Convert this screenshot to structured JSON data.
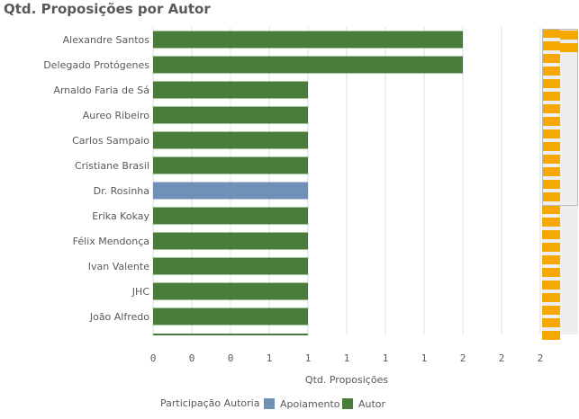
{
  "chart_data": {
    "type": "bar",
    "orientation": "horizontal",
    "stacked": true,
    "title": "Qtd. Proposições por Autor",
    "xlabel": "Qtd. Proposições",
    "ylabel": "",
    "categories": [
      "Alexandre Santos",
      "Delegado Protógenes",
      "Arnaldo Faria de Sá",
      "Aureo Ribeiro",
      "Carlos Sampaio",
      "Cristiane Brasil",
      "Dr. Rosinha",
      "Erika Kokay",
      "Félix Mendonça",
      "Ivan Valente",
      "JHC",
      "João Alfredo"
    ],
    "series": [
      {
        "name": "Apoiamento",
        "color": "#7090b8",
        "values": [
          0,
          0,
          0,
          0,
          0,
          0,
          1,
          0,
          0,
          0,
          0,
          0
        ]
      },
      {
        "name": "Autor",
        "color": "#4a7c3c",
        "values": [
          2,
          2,
          1,
          1,
          1,
          1,
          0,
          1,
          1,
          1,
          1,
          1
        ]
      }
    ],
    "x_tick_labels": [
      "0",
      "0",
      "0",
      "1",
      "1",
      "1",
      "1",
      "1",
      "2",
      "2",
      "2"
    ],
    "xlim": [
      0,
      2.5
    ],
    "grid": true,
    "legend": {
      "title": "Participação Autoria",
      "position": "bottom",
      "items": [
        "Apoiamento",
        "Autor"
      ]
    },
    "scrollbar_color": "#f5a800"
  }
}
